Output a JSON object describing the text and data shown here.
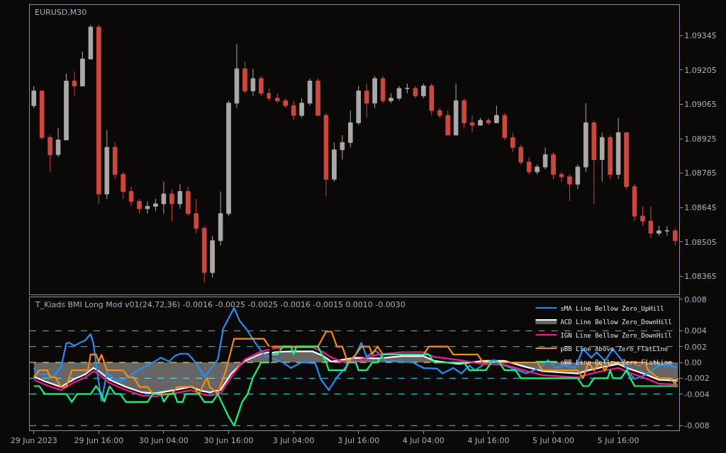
{
  "chart_data": [
    {
      "type": "candlestick",
      "title": "EURUSD,M30",
      "tick_labels": false,
      "x": [
        "2023-06-29T04:00",
        "2023-06-29T05:30",
        "2023-06-29T07:00",
        "2023-06-29T08:30",
        "2023-06-29T10:00",
        "2023-06-29T11:30",
        "2023-06-29T13:00",
        "2023-06-29T14:30",
        "2023-06-29T16:00",
        "2023-06-29T17:30",
        "2023-06-29T19:00",
        "2023-06-29T20:30",
        "2023-06-29T22:00",
        "2023-06-29T23:30",
        "2023-06-30T01:00",
        "2023-06-30T02:30",
        "2023-06-30T04:00",
        "2023-06-30T05:30",
        "2023-06-30T07:00",
        "2023-06-30T08:30",
        "2023-06-30T10:00",
        "2023-06-30T11:30",
        "2023-06-30T13:00",
        "2023-06-30T14:30",
        "2023-06-30T16:00",
        "2023-06-30T17:30",
        "2023-06-30T19:00",
        "2023-06-30T20:30",
        "2023-06-30T22:00",
        "2023-06-30T23:30"
      ],
      "ohlc": [
        [
          1.0906,
          1.0914,
          1.0905,
          1.0912
        ],
        [
          1.0912,
          1.0912,
          1.0892,
          1.0893
        ],
        [
          1.0893,
          1.0894,
          1.0879,
          1.0886
        ],
        [
          1.0886,
          1.0897,
          1.0885,
          1.0892
        ],
        [
          1.0892,
          1.0919,
          1.0892,
          1.0916
        ],
        [
          1.0916,
          1.092,
          1.091,
          1.0914
        ],
        [
          1.0914,
          1.0928,
          1.0914,
          1.0925
        ],
        [
          1.0925,
          1.0939,
          1.0925,
          1.0938
        ],
        [
          1.0938,
          1.0939,
          1.0866,
          1.087
        ],
        [
          1.087,
          1.0896,
          1.0868,
          1.0889
        ],
        [
          1.0889,
          1.0891,
          1.0876,
          1.0878
        ],
        [
          1.0878,
          1.0879,
          1.0868,
          1.0871
        ],
        [
          1.0871,
          1.0873,
          1.0865,
          1.0867
        ],
        [
          1.0867,
          1.0868,
          1.0862,
          1.0864
        ],
        [
          1.0864,
          1.0867,
          1.0862,
          1.0865
        ],
        [
          1.0865,
          1.0868,
          1.0863,
          1.0866
        ],
        [
          1.0866,
          1.0875,
          1.0862,
          1.087
        ],
        [
          1.087,
          1.0872,
          1.0859,
          1.0866
        ],
        [
          1.0866,
          1.0874,
          1.0864,
          1.0871
        ],
        [
          1.0871,
          1.0873,
          1.0861,
          1.0862
        ],
        [
          1.0862,
          1.0868,
          1.0854,
          1.0856
        ],
        [
          1.0856,
          1.0857,
          1.0834,
          1.0838
        ],
        [
          1.0838,
          1.0853,
          1.0836,
          1.0851
        ],
        [
          1.0851,
          1.0871,
          1.0849,
          1.0862
        ],
        [
          1.0862,
          1.0908,
          1.0861,
          1.0907
        ],
        [
          1.0907,
          1.0931,
          1.0905,
          1.0921
        ],
        [
          1.0921,
          1.0924,
          1.0911,
          1.0912
        ],
        [
          1.0912,
          1.0921,
          1.091,
          1.0917
        ],
        [
          1.0917,
          1.0918,
          1.091,
          1.0911
        ],
        [
          1.0911,
          1.0913,
          1.0908,
          1.0909
        ]
      ],
      "xlim": [
        "2023-06-29T03:15",
        "2023-06-30T23:45"
      ],
      "ylim": [
        1.0829,
        1.0947
      ]
    },
    {
      "type": "candlestick",
      "tick_labels": "y",
      "x": [
        "2023-07-03T01:00",
        "2023-07-03T02:30",
        "2023-07-03T04:00",
        "2023-07-03T05:30",
        "2023-07-03T07:00",
        "2023-07-03T08:30",
        "2023-07-03T10:00",
        "2023-07-03T11:30",
        "2023-07-03T13:00",
        "2023-07-03T14:30",
        "2023-07-03T16:00",
        "2023-07-03T17:30",
        "2023-07-03T19:00",
        "2023-07-03T20:30",
        "2023-07-03T22:00",
        "2023-07-03T23:30",
        "2023-07-04T01:00",
        "2023-07-04T02:30",
        "2023-07-04T04:00",
        "2023-07-04T05:30",
        "2023-07-04T07:00",
        "2023-07-04T08:30",
        "2023-07-04T10:00",
        "2023-07-04T11:30",
        "2023-07-04T13:00",
        "2023-07-04T14:30",
        "2023-07-04T16:00",
        "2023-07-04T17:30",
        "2023-07-04T19:00",
        "2023-07-04T20:30",
        "2023-07-04T22:00",
        "2023-07-04T23:30",
        "2023-07-05T01:00",
        "2023-07-05T02:30",
        "2023-07-05T04:00",
        "2023-07-05T05:30",
        "2023-07-05T07:00",
        "2023-07-05T08:30",
        "2023-07-05T10:00",
        "2023-07-05T11:30",
        "2023-07-05T13:00",
        "2023-07-05T14:30",
        "2023-07-05T16:00",
        "2023-07-05T17:30",
        "2023-07-05T19:00",
        "2023-07-05T20:30",
        "2023-07-05T22:00",
        "2023-07-05T23:30",
        "2023-07-06T01:00",
        "2023-07-06T02:30"
      ],
      "ohlc": [
        [
          1.0909,
          1.0911,
          1.0907,
          1.0908
        ],
        [
          1.0908,
          1.0909,
          1.0905,
          1.0906
        ],
        [
          1.0906,
          1.0908,
          1.09,
          1.0902
        ],
        [
          1.0902,
          1.0909,
          1.0901,
          1.0907
        ],
        [
          1.0907,
          1.0917,
          1.0906,
          1.0916
        ],
        [
          1.0916,
          1.0917,
          1.0902,
          1.0902
        ],
        [
          1.0902,
          1.0903,
          1.0869,
          1.0876
        ],
        [
          1.0876,
          1.0891,
          1.0875,
          1.0888
        ],
        [
          1.0888,
          1.0894,
          1.0884,
          1.0891
        ],
        [
          1.0891,
          1.0904,
          1.0889,
          1.0899
        ],
        [
          1.0899,
          1.0914,
          1.0898,
          1.0912
        ],
        [
          1.0912,
          1.0915,
          1.0901,
          1.0907
        ],
        [
          1.0907,
          1.0918,
          1.0905,
          1.0917
        ],
        [
          1.0917,
          1.0918,
          1.0907,
          1.0908
        ],
        [
          1.0908,
          1.0911,
          1.0907,
          1.0909
        ],
        [
          1.0909,
          1.0914,
          1.0908,
          1.0913
        ],
        [
          1.0913,
          1.0915,
          1.0911,
          1.0913
        ],
        [
          1.0913,
          1.0914,
          1.0909,
          1.091
        ],
        [
          1.091,
          1.0915,
          1.0909,
          1.0914
        ],
        [
          1.0914,
          1.0915,
          1.0902,
          1.0904
        ],
        [
          1.0904,
          1.0905,
          1.0901,
          1.0902
        ],
        [
          1.0902,
          1.0904,
          1.0894,
          1.0894
        ],
        [
          1.0894,
          1.0915,
          1.0894,
          1.0908
        ],
        [
          1.0908,
          1.0909,
          1.0897,
          1.0899
        ],
        [
          1.0899,
          1.0902,
          1.0895,
          1.0898
        ],
        [
          1.0898,
          1.0901,
          1.0898,
          1.09
        ],
        [
          1.09,
          1.0901,
          1.0898,
          1.0899
        ],
        [
          1.0899,
          1.0906,
          1.0899,
          1.0902
        ],
        [
          1.0902,
          1.0903,
          1.0892,
          1.0893
        ],
        [
          1.0893,
          1.0895,
          1.0887,
          1.0889
        ],
        [
          1.0889,
          1.089,
          1.0882,
          1.0883
        ],
        [
          1.0883,
          1.0885,
          1.0878,
          1.0879
        ],
        [
          1.0879,
          1.0882,
          1.0878,
          1.0881
        ],
        [
          1.0881,
          1.0889,
          1.088,
          1.0886
        ],
        [
          1.0886,
          1.0887,
          1.0876,
          1.0878
        ],
        [
          1.0878,
          1.0879,
          1.0875,
          1.0877
        ],
        [
          1.0877,
          1.0878,
          1.0867,
          1.0874
        ],
        [
          1.0874,
          1.0882,
          1.0872,
          1.0881
        ],
        [
          1.0881,
          1.0907,
          1.0879,
          1.0899
        ],
        [
          1.0899,
          1.09,
          1.0866,
          1.0884
        ],
        [
          1.0884,
          1.0895,
          1.0875,
          1.0893
        ],
        [
          1.0893,
          1.0894,
          1.0876,
          1.0878
        ],
        [
          1.0878,
          1.0901,
          1.0876,
          1.0895
        ],
        [
          1.0895,
          1.0895,
          1.0872,
          1.0873
        ],
        [
          1.0873,
          1.0874,
          1.0859,
          1.0861
        ],
        [
          1.0861,
          1.0865,
          1.0857,
          1.0859
        ],
        [
          1.0859,
          1.0865,
          1.0852,
          1.0854
        ],
        [
          1.0854,
          1.0857,
          1.0853,
          1.0855
        ],
        [
          1.0855,
          1.0857,
          1.0853,
          1.0855
        ],
        [
          1.0855,
          1.0856,
          1.0849,
          1.0851
        ]
      ],
      "xlim": [
        "2023-07-02T23:45",
        "2023-07-06T03:15"
      ],
      "ylim": [
        1.0829,
        1.0947
      ],
      "yticks": [
        1.08365,
        1.08505,
        1.08645,
        1.08785,
        1.08925,
        1.09065,
        1.09205,
        1.09345
      ]
    },
    {
      "type": "line",
      "tick_labels": "x",
      "annotations": [
        "T_Kiads BMI Long Mod v01(24,72,36) -0.0016 -0.0025 -0.0025 -0.0016 -0.0015 0.0010 -0.0030"
      ],
      "xlim": [
        "2023-06-29T03:15",
        "2023-06-30T23:45"
      ],
      "ylim": [
        -0.0086,
        0.0082
      ],
      "xticks": [
        {
          "value": "2023-06-29T04:00",
          "label": "29 Jun 2023"
        },
        {
          "value": "2023-06-29T16:00",
          "label": "29 Jun 16:00"
        },
        {
          "value": "2023-06-30T04:00",
          "label": "30 Jun 04:00"
        },
        {
          "value": "2023-06-30T16:00",
          "label": "30 Jun 16:00"
        }
      ],
      "ref_lines": [
        {
          "axis": "y",
          "value": 0.004,
          "color": "#00e5ee",
          "line_style": "dashed"
        },
        {
          "axis": "y",
          "value": 0.002,
          "color": "#00e5ee",
          "line_style": "dashed"
        },
        {
          "axis": "y",
          "value": 0,
          "color": "#ffff00",
          "line_style": "dashed"
        },
        {
          "axis": "y",
          "value": -0.002,
          "color": "#00e5ee",
          "line_style": "dashed"
        },
        {
          "axis": "y",
          "value": -0.004,
          "color": "#00e5ee",
          "line_style": "dashed"
        },
        {
          "axis": "y",
          "value": -0.008,
          "color": "#00e5ee",
          "line_style": "dashed"
        }
      ],
      "series": [
        {
          "color": "#1e90ff",
          "x": [
            "2023-06-29T04:00",
            "2023-06-29T05:00",
            "2023-06-29T06:30",
            "2023-06-29T07:30",
            "2023-06-29T09:00",
            "2023-06-29T10:00",
            "2023-06-29T10:30",
            "2023-06-29T11:30",
            "2023-06-29T12:30",
            "2023-06-29T13:30",
            "2023-06-29T14:30",
            "2023-06-29T15:00",
            "2023-06-29T16:00",
            "2023-06-29T16:30",
            "2023-06-29T17:30",
            "2023-06-29T19:00",
            "2023-06-29T20:00",
            "2023-06-29T21:30",
            "2023-06-29T23:00",
            "2023-06-30T01:00",
            "2023-06-30T03:30",
            "2023-06-30T05:00",
            "2023-06-30T06:00",
            "2023-06-30T07:00",
            "2023-06-30T08:30",
            "2023-06-30T10:00",
            "2023-06-30T11:30",
            "2023-06-30T12:30",
            "2023-06-30T14:00",
            "2023-06-30T15:00",
            "2023-06-30T17:00",
            "2023-06-30T18:00",
            "2023-06-30T19:30",
            "2023-06-30T21:00",
            "2023-06-30T22:30",
            "2023-06-30T23:30"
          ],
          "values": [
            -0.0007,
            -0.0015,
            -0.0015,
            -0.0018,
            -0.0007,
            0.0024,
            0.0025,
            0.0021,
            0.0025,
            0.0028,
            0.0036,
            0.0024,
            -0.0026,
            -0.0049,
            -0.0013,
            -0.0021,
            -0.0024,
            -0.0018,
            -0.0011,
            -0.0004,
            0.0006,
            0.0001,
            0.0008,
            0.0011,
            0.0011,
            -0.0001,
            -0.0018,
            -0.001,
            0.0004,
            0.0043,
            0.0069,
            0.0053,
            0.004,
            0.0024,
            0.001,
            0.0007
          ]
        },
        {
          "type": "area",
          "color": "#ffffff",
          "x": [
            "2023-06-29T04:00",
            "2023-06-29T06:00",
            "2023-06-29T09:00",
            "2023-06-29T11:30",
            "2023-06-29T13:30",
            "2023-06-29T15:00",
            "2023-06-29T16:00",
            "2023-06-29T18:00",
            "2023-06-29T21:00",
            "2023-06-30T00:00",
            "2023-06-30T02:30",
            "2023-06-30T06:00",
            "2023-06-30T09:00",
            "2023-06-30T11:00",
            "2023-06-30T12:30",
            "2023-06-30T14:30",
            "2023-06-30T16:30",
            "2023-06-30T19:00",
            "2023-06-30T22:00",
            "2023-06-30T23:30"
          ],
          "values": [
            -0.0018,
            -0.0024,
            -0.0031,
            -0.0021,
            -0.0015,
            -0.0007,
            -0.0011,
            -0.0022,
            -0.0031,
            -0.0038,
            -0.0039,
            -0.0035,
            -0.0031,
            -0.0036,
            -0.0038,
            -0.0035,
            -0.0014,
            0.0002,
            0.0011,
            0.0013
          ]
        },
        {
          "color": "#ff1493",
          "x": [
            "2023-06-29T04:00",
            "2023-06-29T06:00",
            "2023-06-29T09:00",
            "2023-06-29T11:30",
            "2023-06-29T13:30",
            "2023-06-29T15:00",
            "2023-06-29T16:00",
            "2023-06-29T18:00",
            "2023-06-29T21:00",
            "2023-06-30T00:00",
            "2023-06-30T02:30",
            "2023-06-30T06:00",
            "2023-06-30T09:00",
            "2023-06-30T11:00",
            "2023-06-30T12:30",
            "2023-06-30T14:30",
            "2023-06-30T16:30",
            "2023-06-30T19:00",
            "2023-06-30T22:00",
            "2023-06-30T23:30"
          ],
          "values": [
            -0.0022,
            -0.0028,
            -0.0035,
            -0.0025,
            -0.0019,
            -0.0011,
            -0.0015,
            -0.0026,
            -0.0035,
            -0.0042,
            -0.0043,
            -0.0039,
            -0.0035,
            -0.004,
            -0.0042,
            -0.0039,
            -0.0018,
            0.0004,
            0.0014,
            0.0016
          ]
        },
        {
          "color": "#ff8c00",
          "x": [
            "2023-06-29T04:00",
            "2023-06-29T05:00",
            "2023-06-29T06:30",
            "2023-06-29T07:00",
            "2023-06-29T08:00",
            "2023-06-29T09:00",
            "2023-06-29T10:00",
            "2023-06-29T11:00",
            "2023-06-29T14:00",
            "2023-06-29T14:30",
            "2023-06-29T15:30",
            "2023-06-29T16:00",
            "2023-06-29T16:30",
            "2023-06-29T17:30",
            "2023-06-29T20:30",
            "2023-06-29T21:30",
            "2023-06-29T22:30",
            "2023-06-29T23:30",
            "2023-06-30T01:00",
            "2023-06-30T02:00",
            "2023-06-30T05:30",
            "2023-06-30T06:30",
            "2023-06-30T09:30",
            "2023-06-30T10:30",
            "2023-06-30T12:00",
            "2023-06-30T12:30",
            "2023-06-30T14:00",
            "2023-06-30T15:30",
            "2023-06-30T17:00",
            "2023-06-30T22:30",
            "2023-06-30T23:30"
          ],
          "values": [
            -0.0019,
            -0.001,
            -0.001,
            -0.0019,
            -0.0019,
            -0.0031,
            -0.0031,
            -0.001,
            -0.001,
            0.001,
            0.001,
            0.0001,
            0.001,
            -0.001,
            -0.001,
            -0.0019,
            -0.0019,
            -0.0031,
            -0.0031,
            -0.004,
            -0.004,
            -0.0031,
            -0.0031,
            -0.004,
            -0.0019,
            -0.0031,
            -0.004,
            -0.001,
            0.003,
            0.003,
            0.002
          ]
        },
        {
          "color": "#00ff7f",
          "x": [
            "2023-06-29T04:00",
            "2023-06-29T05:00",
            "2023-06-29T06:00",
            "2023-06-29T10:00",
            "2023-06-29T11:00",
            "2023-06-29T12:00",
            "2023-06-29T14:30",
            "2023-06-29T15:30",
            "2023-06-29T16:30",
            "2023-06-29T17:00",
            "2023-06-29T17:30",
            "2023-06-29T18:00",
            "2023-06-29T19:00",
            "2023-06-29T20:00",
            "2023-06-29T21:00",
            "2023-06-30T01:00",
            "2023-06-30T02:00",
            "2023-06-30T03:30",
            "2023-06-30T04:00",
            "2023-06-30T05:00",
            "2023-06-30T06:00",
            "2023-06-30T06:30",
            "2023-06-30T07:30",
            "2023-06-30T08:00",
            "2023-06-30T10:30",
            "2023-06-30T11:30",
            "2023-06-30T13:00",
            "2023-06-30T14:00",
            "2023-06-30T16:00",
            "2023-06-30T17:00",
            "2023-06-30T18:30",
            "2023-06-30T19:30",
            "2023-06-30T20:30",
            "2023-06-30T22:00",
            "2023-06-30T23:30"
          ],
          "values": [
            -0.003,
            -0.003,
            -0.004,
            -0.004,
            -0.005,
            -0.004,
            -0.004,
            -0.003,
            -0.004,
            -0.005,
            -0.004,
            -0.003,
            -0.004,
            -0.004,
            -0.005,
            -0.005,
            -0.004,
            -0.004,
            -0.005,
            -0.004,
            -0.004,
            -0.005,
            -0.005,
            -0.004,
            -0.004,
            -0.005,
            -0.005,
            -0.004,
            -0.0069,
            -0.008,
            -0.005,
            -0.004,
            -0.0019,
            0,
            0
          ]
        }
      ]
    },
    {
      "type": "line",
      "legend": "top right",
      "xlim": [
        "2023-07-02T23:45",
        "2023-07-06T03:15"
      ],
      "ylim": [
        -0.0086,
        0.0082
      ],
      "xticks": [
        {
          "value": "2023-07-03T04:00",
          "label": "3 Jul 04:00"
        },
        {
          "value": "2023-07-03T16:00",
          "label": "3 Jul 16:00"
        },
        {
          "value": "2023-07-04T04:00",
          "label": "4 Jul 04:00"
        },
        {
          "value": "2023-07-04T16:00",
          "label": "4 Jul 16:00"
        },
        {
          "value": "2023-07-05T04:00",
          "label": "5 Jul 04:00"
        },
        {
          "value": "2023-07-05T16:00",
          "label": "5 Jul 16:00"
        }
      ],
      "yticks": [
        0.008,
        0.004,
        0.002,
        {
          "value": 0,
          "label": "0.00"
        },
        -0.002,
        -0.004,
        -0.008
      ],
      "ref_lines": [
        {
          "axis": "y",
          "value": 0.004,
          "color": "#00e5ee",
          "line_style": "dashed"
        },
        {
          "axis": "y",
          "value": 0.002,
          "color": "#00e5ee",
          "line_style": "dashed"
        },
        {
          "axis": "y",
          "value": 0,
          "color": "#ffff00",
          "line_style": "dashed"
        },
        {
          "axis": "y",
          "value": -0.002,
          "color": "#00e5ee",
          "line_style": "dashed"
        },
        {
          "axis": "y",
          "value": -0.004,
          "color": "#00e5ee",
          "line_style": "dashed"
        },
        {
          "axis": "y",
          "value": -0.008,
          "color": "#00e5ee",
          "line_style": "dashed"
        }
      ],
      "series": [
        {
          "name": "sMA Line Bellow Zero_UpHill",
          "color": "#1e90ff",
          "x": [
            "2023-07-03T00:00",
            "2023-07-03T00:30",
            "2023-07-03T02:00",
            "2023-07-03T03:30",
            "2023-07-03T05:30",
            "2023-07-03T08:00",
            "2023-07-03T09:00",
            "2023-07-03T10:30",
            "2023-07-03T12:00",
            "2023-07-03T13:30",
            "2023-07-03T15:30",
            "2023-07-03T16:30",
            "2023-07-03T17:30",
            "2023-07-03T19:00",
            "2023-07-03T19:30",
            "2023-07-03T21:00",
            "2023-07-04T00:00",
            "2023-07-04T02:00",
            "2023-07-04T04:00",
            "2023-07-04T06:30",
            "2023-07-04T07:30",
            "2023-07-04T09:30",
            "2023-07-04T11:00",
            "2023-07-04T12:30",
            "2023-07-04T13:30",
            "2023-07-04T15:30",
            "2023-07-04T17:00",
            "2023-07-04T19:00",
            "2023-07-04T21:30",
            "2023-07-04T23:00",
            "2023-07-05T01:30",
            "2023-07-05T03:00",
            "2023-07-05T04:30",
            "2023-07-05T06:00",
            "2023-07-05T08:00",
            "2023-07-05T09:30",
            "2023-07-05T11:00",
            "2023-07-05T12:00",
            "2023-07-05T13:30",
            "2023-07-05T15:00",
            "2023-07-05T16:30",
            "2023-07-05T18:00",
            "2023-07-05T19:00",
            "2023-07-05T21:00",
            "2023-07-05T23:30",
            "2023-07-06T01:30",
            "2023-07-06T03:00"
          ],
          "values": [
            0.0005,
            0.0004,
            0,
            -0.0007,
            0,
            -0.0001,
            -0.0021,
            -0.0035,
            -0.0019,
            -0.0007,
            0.001,
            0.0025,
            0.0007,
            0.0015,
            0.0013,
            0.0002,
            0.0001,
            0,
            -0.0007,
            -0.0008,
            -0.0014,
            -0.0007,
            -0.0014,
            -0.0004,
            -0.001,
            -0.0001,
            0.0003,
            -0.0004,
            -0.001,
            -0.0014,
            -0.0007,
            0.0003,
            -0.0007,
            -0.0004,
            -0.0007,
            0.0017,
            0.0006,
            0.0013,
            0.0002,
            0.0017,
            0.0004,
            -0.0013,
            -0.0021,
            -0.0016,
            -0.0004,
            -0.0004,
            -0.0007
          ]
        },
        {
          "type": "area",
          "name": "ACD Line Bellow Zero_DownHill",
          "color": "#ffffff",
          "x": [
            "2023-07-03T00:00",
            "2023-07-03T00:30",
            "2023-07-03T03:30",
            "2023-07-03T07:30",
            "2023-07-03T09:30",
            "2023-07-03T11:00",
            "2023-07-03T13:30",
            "2023-07-03T15:30",
            "2023-07-03T19:30",
            "2023-07-04T00:00",
            "2023-07-04T04:00",
            "2023-07-04T06:00",
            "2023-07-04T10:30",
            "2023-07-04T15:00",
            "2023-07-04T19:00",
            "2023-07-04T22:30",
            "2023-07-05T02:00",
            "2023-07-05T06:00",
            "2023-07-05T08:30",
            "2023-07-05T10:30",
            "2023-07-05T13:00",
            "2023-07-05T16:00",
            "2023-07-05T18:00",
            "2023-07-05T21:00",
            "2023-07-05T23:30",
            "2023-07-06T03:00"
          ],
          "values": [
            0.0012,
            0.0013,
            0.0014,
            0.0014,
            0.0008,
            0.0001,
            0.0004,
            0.0006,
            0.0005,
            0.0008,
            0.0008,
            0.0002,
            -0.0002,
            0.0002,
            0.0002,
            -0.0005,
            -0.0011,
            -0.0013,
            -0.0014,
            -0.001,
            -0.0006,
            -0.0002,
            -0.0008,
            -0.0015,
            -0.0022,
            -0.0023
          ]
        },
        {
          "name": "IGN Line Bellow Zero_DownHill",
          "color": "#ff1493",
          "x": [
            "2023-07-03T00:00",
            "2023-07-03T00:30",
            "2023-07-03T03:30",
            "2023-07-03T07:30",
            "2023-07-03T09:30",
            "2023-07-03T11:00",
            "2023-07-03T13:30",
            "2023-07-03T15:30",
            "2023-07-03T19:30",
            "2023-07-04T00:00",
            "2023-07-04T04:00",
            "2023-07-04T06:00",
            "2023-07-04T10:30",
            "2023-07-04T15:00",
            "2023-07-04T19:00",
            "2023-07-04T22:30",
            "2023-07-05T02:00",
            "2023-07-05T06:00",
            "2023-07-05T08:30",
            "2023-07-05T10:30",
            "2023-07-05T13:00",
            "2023-07-05T16:00",
            "2023-07-05T18:00",
            "2023-07-05T21:00",
            "2023-07-05T23:30",
            "2023-07-06T03:00"
          ],
          "values": [
            0.0017,
            0.0018,
            0.0019,
            0.0019,
            0.0013,
            0.0006,
            0,
            0.0002,
            0.001,
            0.0013,
            0.0013,
            0.0007,
            0.0003,
            -0.0002,
            -0.0003,
            -0.001,
            -0.0016,
            -0.0018,
            -0.0019,
            -0.0015,
            -0.0011,
            -0.0007,
            -0.0013,
            -0.002,
            -0.0027,
            -0.0028
          ]
        },
        {
          "name": "pBB Line Above Zero_FlatLine",
          "color": "#ff8c00",
          "x": [
            "2023-07-03T00:00",
            "2023-07-03T08:30",
            "2023-07-03T10:00",
            "2023-07-03T11:00",
            "2023-07-03T12:00",
            "2023-07-03T13:00",
            "2023-07-03T14:00",
            "2023-07-03T15:30",
            "2023-07-03T16:30",
            "2023-07-03T18:00",
            "2023-07-03T18:30",
            "2023-07-03T19:30",
            "2023-07-03T20:30",
            "2023-07-04T04:00",
            "2023-07-04T05:00",
            "2023-07-04T08:30",
            "2023-07-04T09:30",
            "2023-07-04T14:00",
            "2023-07-04T15:00",
            "2023-07-05T01:00",
            "2023-07-05T02:00",
            "2023-07-05T08:30",
            "2023-07-05T09:30",
            "2023-07-05T10:30",
            "2023-07-05T11:30",
            "2023-07-05T12:30",
            "2023-07-05T13:30",
            "2023-07-05T14:30",
            "2023-07-05T21:00",
            "2023-07-05T21:30",
            "2023-07-05T23:30",
            "2023-07-06T01:30",
            "2023-07-06T02:30",
            "2023-07-06T03:00"
          ],
          "values": [
            0.002,
            0.002,
            0.0039,
            0.0039,
            0.002,
            0.002,
            0,
            0.001,
            0.002,
            0.002,
            0.001,
            0.002,
            0.001,
            0.001,
            0.002,
            0.002,
            0.001,
            0.001,
            0,
            0,
            -0.001,
            -0.001,
            -0.002,
            0,
            -0.001,
            0,
            -0.001,
            0,
            0,
            -0.001,
            -0.002,
            -0.002,
            -0.0027,
            -0.002
          ]
        },
        {
          "name": "oBB Line Bellow Zero_FlatLine",
          "color": "#00ff7f",
          "x": [
            "2023-07-03T00:00",
            "2023-07-03T01:00",
            "2023-07-03T02:00",
            "2023-07-03T03:30",
            "2023-07-03T04:00",
            "2023-07-03T04:30",
            "2023-07-03T08:30",
            "2023-07-03T10:00",
            "2023-07-03T10:30",
            "2023-07-03T13:30",
            "2023-07-03T14:00",
            "2023-07-03T15:30",
            "2023-07-03T16:00",
            "2023-07-03T17:30",
            "2023-07-03T18:30",
            "2023-07-03T19:30",
            "2023-07-03T20:30",
            "2023-07-04T05:00",
            "2023-07-04T06:00",
            "2023-07-04T11:30",
            "2023-07-04T12:30",
            "2023-07-04T15:30",
            "2023-07-04T16:30",
            "2023-07-04T18:00",
            "2023-07-04T19:00",
            "2023-07-04T21:00",
            "2023-07-04T22:00",
            "2023-07-05T08:30",
            "2023-07-05T09:30",
            "2023-07-05T10:30",
            "2023-07-05T11:30",
            "2023-07-05T14:00",
            "2023-07-05T14:30",
            "2023-07-05T15:00",
            "2023-07-05T16:30",
            "2023-07-05T17:30",
            "2023-07-05T19:00",
            "2023-07-06T03:00"
          ],
          "values": [
            0.001,
            0.001,
            0.002,
            0.002,
            0.001,
            0.002,
            0.002,
            0,
            -0.001,
            -0.001,
            0,
            0,
            -0.001,
            -0.001,
            0,
            0,
            0.001,
            0.001,
            0,
            0,
            -0.001,
            -0.001,
            0,
            0,
            -0.001,
            -0.001,
            -0.002,
            -0.002,
            -0.003,
            -0.003,
            -0.002,
            -0.002,
            -0.001,
            -0.002,
            -0.002,
            -0.001,
            -0.003,
            -0.003
          ]
        }
      ]
    }
  ]
}
